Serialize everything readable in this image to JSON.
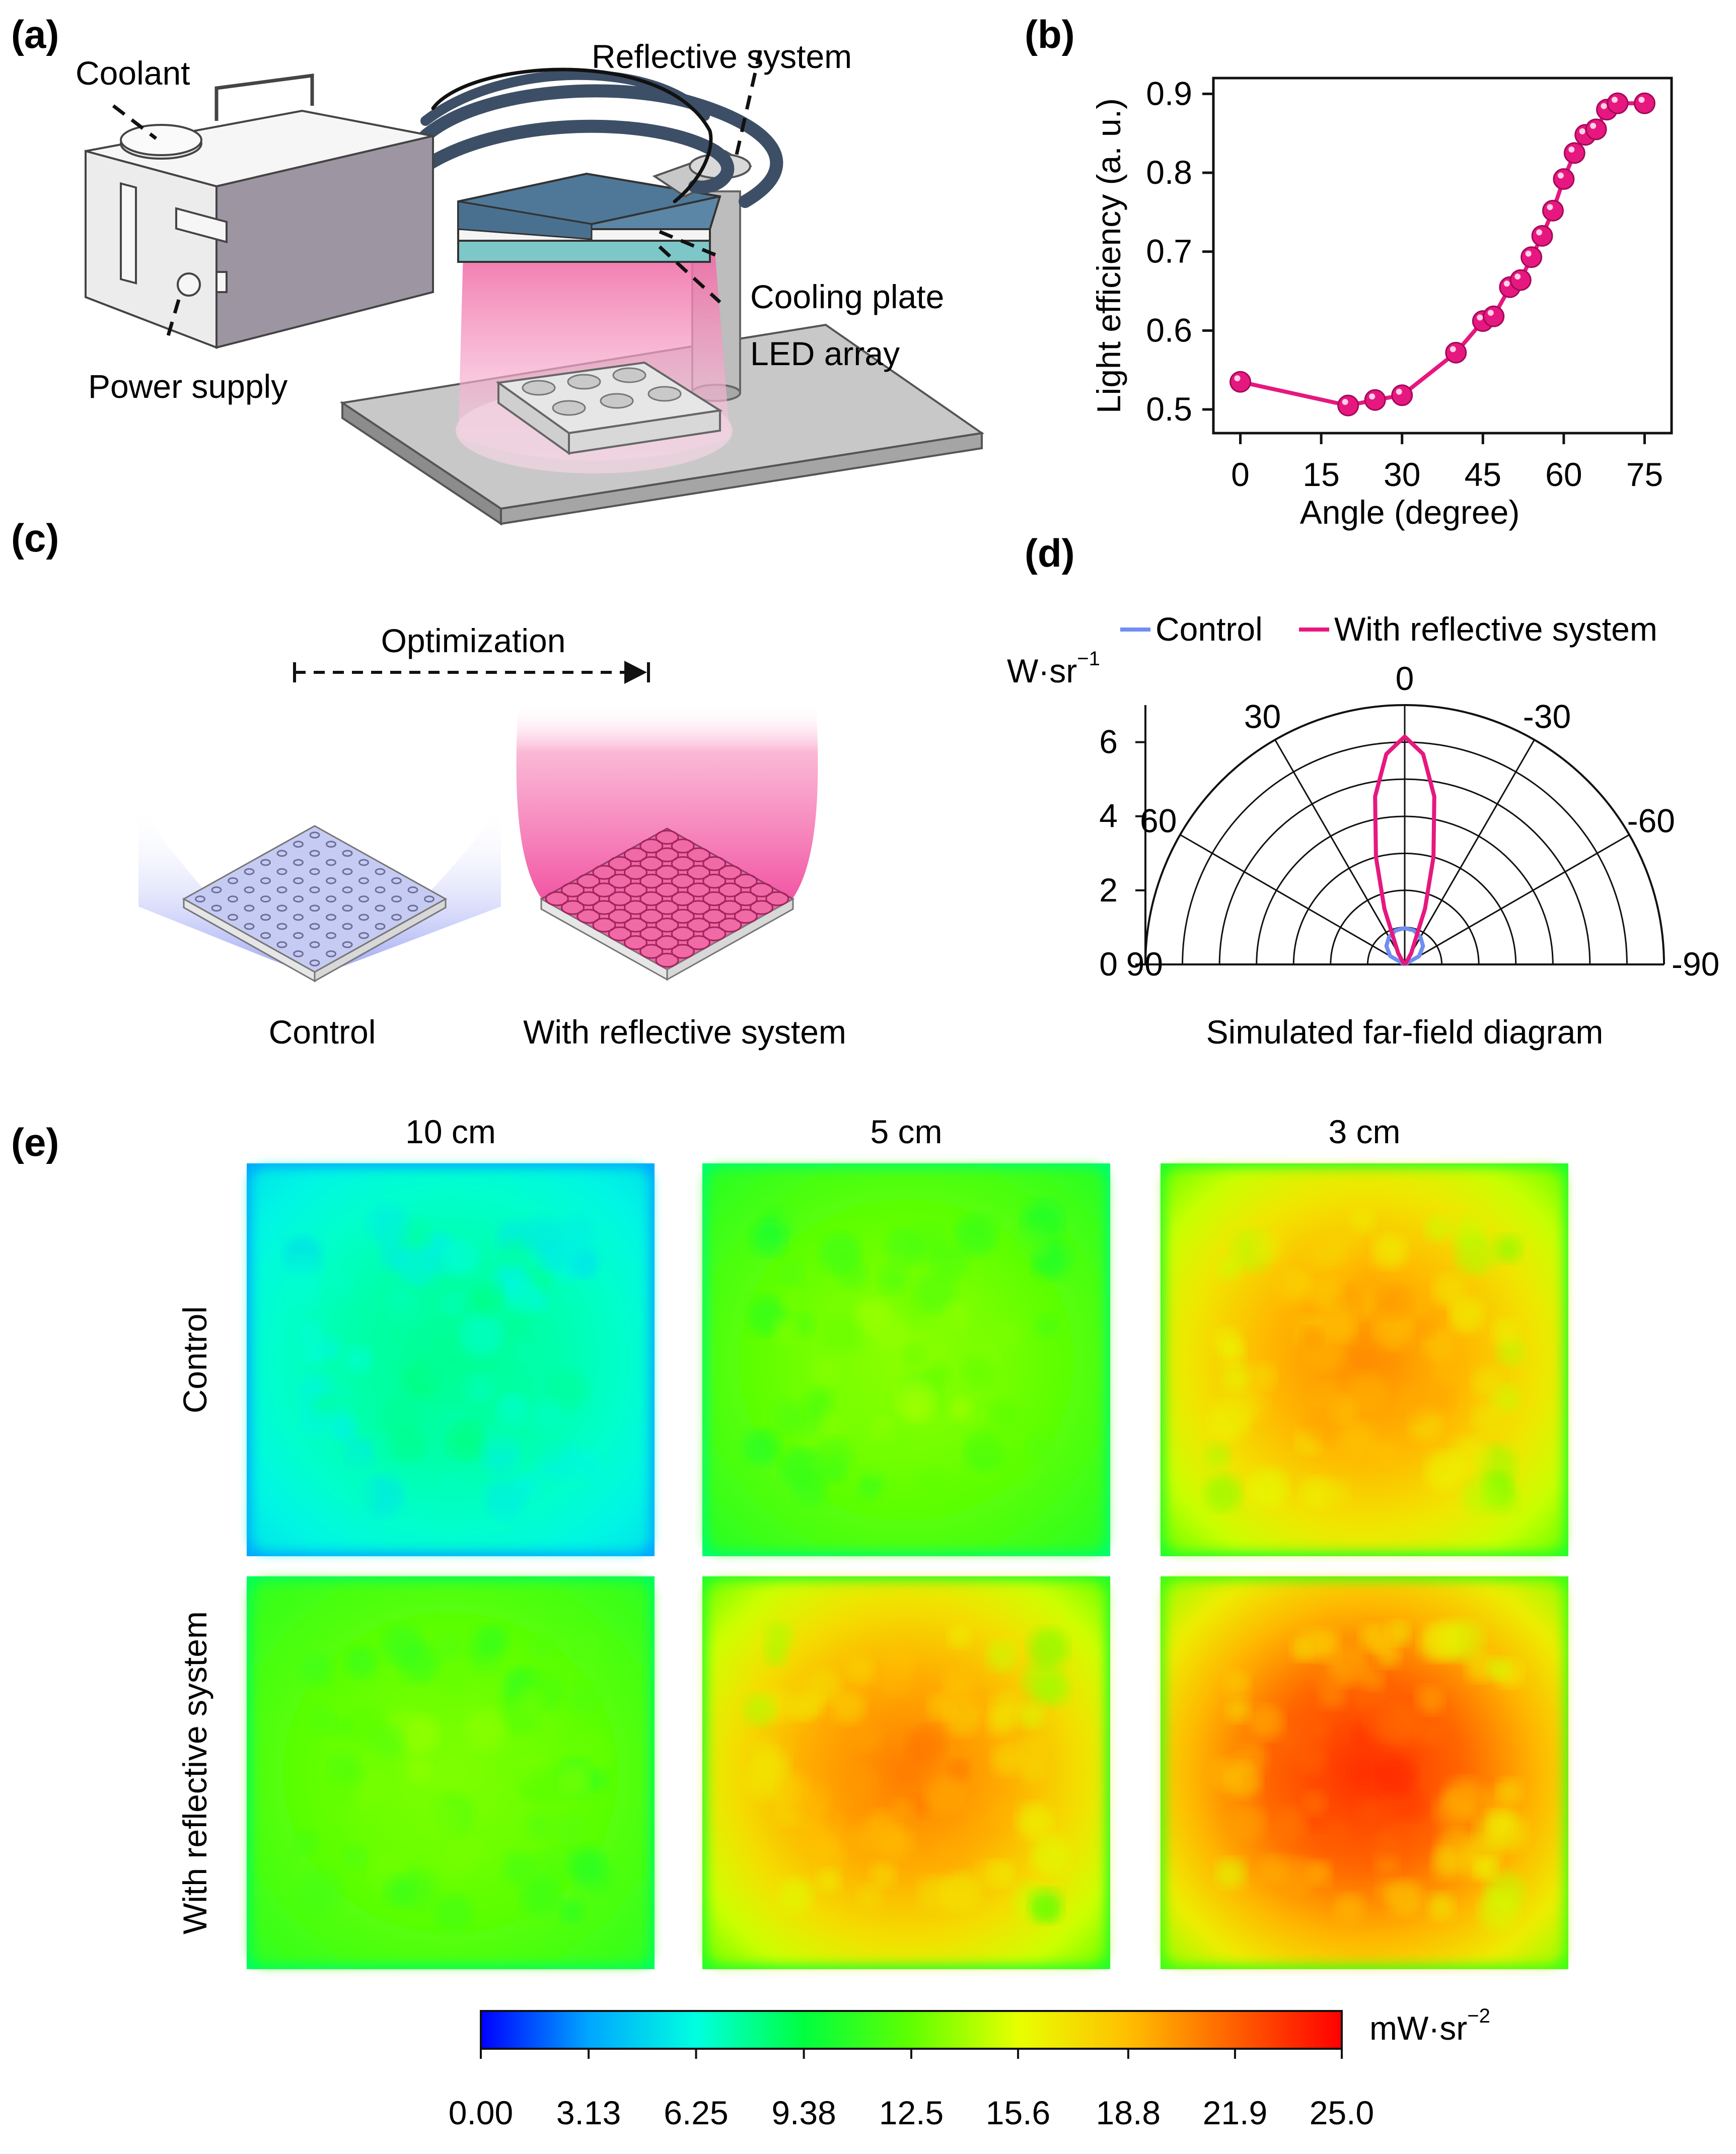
{
  "panel_labels": {
    "a": "(a)",
    "b": "(b)",
    "c": "(c)",
    "d": "(d)",
    "e": "(e)"
  },
  "panel_a": {
    "labels": {
      "coolant": "Coolant",
      "reflective": "Reflective system",
      "cooling_plate": "Cooling plate",
      "led_array": "LED array",
      "power_supply": "Power supply"
    },
    "colors": {
      "box": "#efefef",
      "box_side": "#9e95a3",
      "hose": "#3d4f66",
      "plate_top": "#5b86a6",
      "plate_mid": "#f4f4f4",
      "plate_low": "#7ec7c9",
      "beam": "#f06aa6",
      "base": "#9a9a9a"
    }
  },
  "panel_c": {
    "optimization": "Optimization",
    "control": "Control",
    "with": "With reflective system",
    "colors": {
      "control_glow": "#7a86f0",
      "reflect_glow": "#f14b9e"
    }
  },
  "chart_data": [
    {
      "id": "b",
      "type": "line",
      "title": "",
      "xlabel": "Angle (degree)",
      "ylabel": "Light efficiency (a. u.)",
      "x": [
        0,
        20,
        25,
        30,
        40,
        45,
        47,
        50,
        52,
        54,
        56,
        58,
        60,
        62,
        64,
        66,
        68,
        70,
        75
      ],
      "y": [
        0.535,
        0.505,
        0.512,
        0.518,
        0.572,
        0.612,
        0.618,
        0.655,
        0.664,
        0.693,
        0.72,
        0.752,
        0.792,
        0.825,
        0.848,
        0.855,
        0.88,
        0.888,
        0.888
      ],
      "xlim": [
        -5,
        80
      ],
      "ylim": [
        0.47,
        0.92
      ],
      "xticks": [
        "0",
        "15",
        "30",
        "45",
        "60",
        "75"
      ],
      "xtick_values": [
        0,
        15,
        30,
        45,
        60,
        75
      ],
      "yticks": [
        "0.5",
        "0.6",
        "0.7",
        "0.8",
        "0.9"
      ],
      "ytick_values": [
        0.5,
        0.6,
        0.7,
        0.8,
        0.9
      ],
      "color": "#e6187f"
    },
    {
      "id": "d",
      "type": "polar",
      "subtitle": "Simulated far-field diagram",
      "unit": "W·sr",
      "unit_exp": "−1",
      "rmax": 7,
      "rticks": [
        "0",
        "2",
        "4",
        "6"
      ],
      "rtick_values": [
        0,
        2,
        4,
        6
      ],
      "angle_labels": [
        "90",
        "60",
        "30",
        "0",
        "-30",
        "-60",
        "-90"
      ],
      "angle_values": [
        90,
        60,
        30,
        0,
        -30,
        -60,
        -90
      ],
      "series": [
        {
          "name": "Control",
          "color": "#6f8ef2",
          "angles": [
            -90,
            -60,
            -45,
            -30,
            -15,
            0,
            15,
            30,
            45,
            60,
            90
          ],
          "values": [
            0,
            0.45,
            0.7,
            0.85,
            0.95,
            0.98,
            0.95,
            0.85,
            0.7,
            0.45,
            0
          ]
        },
        {
          "name": "With reflective system",
          "color": "#e6187f",
          "angles": [
            -90,
            -40,
            -30,
            -20,
            -15,
            -10,
            -5,
            0,
            5,
            10,
            15,
            20,
            30,
            40,
            90
          ],
          "values": [
            0,
            0.05,
            0.35,
            1.6,
            3.0,
            4.6,
            5.7,
            6.15,
            5.7,
            4.6,
            3.0,
            1.6,
            0.35,
            0.05,
            0
          ]
        }
      ]
    },
    {
      "id": "e",
      "type": "heatmap",
      "columns": [
        "10 cm",
        "5 cm",
        "3 cm"
      ],
      "rows": [
        "Control",
        "With reflective system"
      ],
      "center_values": [
        [
          7.8,
          13.5,
          20.5
        ],
        [
          13.2,
          21.0,
          23.5
        ]
      ],
      "edge_values": [
        [
          5.2,
          10.5,
          12.5
        ],
        [
          10.8,
          12.5,
          13.5
        ]
      ],
      "colorbar": {
        "ticks": [
          "0.00",
          "3.13",
          "6.25",
          "9.38",
          "12.5",
          "15.6",
          "18.8",
          "21.9",
          "25.0"
        ],
        "tick_values": [
          0,
          3.13,
          6.25,
          9.38,
          12.5,
          15.6,
          18.8,
          21.9,
          25.0
        ],
        "min": 0,
        "max": 25,
        "unit": "mW·sr",
        "unit_exp": "−2",
        "stops": [
          "#0000ff",
          "#00a6ff",
          "#00ffe0",
          "#00ff40",
          "#60ff00",
          "#e8ff00",
          "#ffc000",
          "#ff6000",
          "#ff0000"
        ]
      }
    }
  ]
}
